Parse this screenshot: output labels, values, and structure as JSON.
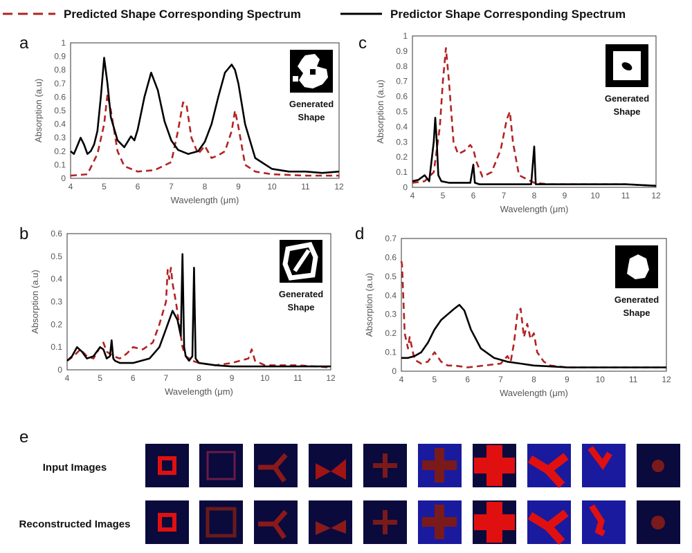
{
  "legend": {
    "predicted": "Predicted Shape Corresponding Spectrum",
    "predictor": "Predictor Shape Corresponding Spectrum",
    "predicted_color": "#b22222",
    "predictor_color": "#000000"
  },
  "chart_data": [
    {
      "panel": "a",
      "type": "line",
      "xlabel": "Wavelength (μm)",
      "ylabel": "Absorption (a.u)",
      "xlim": [
        4,
        12
      ],
      "ylim": [
        0,
        1
      ],
      "xticks": [
        "4",
        "5",
        "6",
        "7",
        "8",
        "9",
        "10",
        "11",
        "12"
      ],
      "yticks": [
        "0",
        "0.1",
        "0.2",
        "0.3",
        "0.4",
        "0.5",
        "0.6",
        "0.7",
        "0.8",
        "0.9",
        "1"
      ],
      "inset_label": [
        "Generated",
        "Shape"
      ],
      "series": [
        {
          "name": "Predicted Shape Corresponding Spectrum",
          "style": "dashed",
          "x": [
            4.0,
            4.5,
            4.8,
            5.0,
            5.1,
            5.2,
            5.4,
            5.6,
            6.0,
            6.5,
            7.0,
            7.2,
            7.35,
            7.45,
            7.6,
            7.8,
            8.0,
            8.2,
            8.4,
            8.6,
            8.8,
            8.9,
            9.0,
            9.2,
            9.5,
            10,
            11,
            12
          ],
          "y": [
            0.02,
            0.03,
            0.18,
            0.4,
            0.62,
            0.5,
            0.2,
            0.09,
            0.05,
            0.06,
            0.12,
            0.35,
            0.56,
            0.55,
            0.3,
            0.18,
            0.24,
            0.15,
            0.17,
            0.2,
            0.35,
            0.5,
            0.38,
            0.1,
            0.05,
            0.03,
            0.02,
            0.02
          ]
        },
        {
          "name": "Predictor Shape Corresponding Spectrum",
          "style": "solid",
          "x": [
            4.0,
            4.1,
            4.2,
            4.3,
            4.4,
            4.5,
            4.6,
            4.7,
            4.8,
            4.9,
            5.0,
            5.1,
            5.2,
            5.4,
            5.6,
            5.8,
            5.9,
            6.0,
            6.2,
            6.4,
            6.6,
            6.8,
            7.0,
            7.2,
            7.5,
            7.8,
            8.0,
            8.2,
            8.4,
            8.6,
            8.8,
            8.9,
            9.0,
            9.2,
            9.5,
            10,
            10.5,
            11,
            11.5,
            12
          ],
          "y": [
            0.2,
            0.18,
            0.24,
            0.3,
            0.25,
            0.18,
            0.2,
            0.25,
            0.35,
            0.6,
            0.89,
            0.7,
            0.45,
            0.28,
            0.23,
            0.31,
            0.28,
            0.36,
            0.6,
            0.78,
            0.65,
            0.42,
            0.28,
            0.21,
            0.18,
            0.2,
            0.27,
            0.4,
            0.6,
            0.78,
            0.84,
            0.8,
            0.7,
            0.4,
            0.15,
            0.07,
            0.05,
            0.05,
            0.04,
            0.05
          ]
        }
      ]
    },
    {
      "panel": "b",
      "type": "line",
      "xlabel": "Wavelength (μm)",
      "ylabel": "Absorption (a.u)",
      "xlim": [
        4,
        12
      ],
      "ylim": [
        0,
        0.6
      ],
      "xticks": [
        "4",
        "5",
        "6",
        "7",
        "8",
        "9",
        "10",
        "11",
        "12"
      ],
      "yticks": [
        "0",
        "0.1",
        "0.2",
        "0.3",
        "0.4",
        "0.5",
        "0.6"
      ],
      "inset_label": [
        "Generated",
        "Shape"
      ],
      "series": [
        {
          "name": "Predicted Shape Corresponding Spectrum",
          "style": "dashed",
          "x": [
            4.0,
            4.2,
            4.4,
            4.6,
            4.8,
            5.0,
            5.1,
            5.2,
            5.4,
            5.6,
            5.8,
            6.0,
            6.3,
            6.6,
            6.8,
            7.0,
            7.05,
            7.1,
            7.15,
            7.2,
            7.3,
            7.4,
            7.5,
            7.6,
            7.8,
            8.0,
            8.5,
            9.0,
            9.5,
            9.6,
            9.7,
            10,
            11,
            12
          ],
          "y": [
            0.04,
            0.06,
            0.09,
            0.06,
            0.05,
            0.1,
            0.12,
            0.08,
            0.06,
            0.05,
            0.07,
            0.1,
            0.09,
            0.12,
            0.2,
            0.3,
            0.44,
            0.4,
            0.45,
            0.38,
            0.3,
            0.2,
            0.1,
            0.06,
            0.04,
            0.03,
            0.02,
            0.03,
            0.05,
            0.09,
            0.04,
            0.02,
            0.02,
            0.01
          ]
        },
        {
          "name": "Predictor Shape Corresponding Spectrum",
          "style": "solid",
          "x": [
            4.0,
            4.15,
            4.3,
            4.45,
            4.6,
            4.8,
            5.0,
            5.1,
            5.2,
            5.3,
            5.35,
            5.4,
            5.45,
            5.6,
            6.0,
            6.5,
            6.8,
            7.0,
            7.2,
            7.35,
            7.45,
            7.5,
            7.55,
            7.6,
            7.7,
            7.8,
            7.85,
            7.9,
            8.0,
            8.5,
            9,
            10,
            11,
            12
          ],
          "y": [
            0.04,
            0.06,
            0.1,
            0.08,
            0.05,
            0.06,
            0.1,
            0.09,
            0.05,
            0.06,
            0.13,
            0.05,
            0.04,
            0.03,
            0.03,
            0.05,
            0.1,
            0.18,
            0.26,
            0.22,
            0.15,
            0.51,
            0.1,
            0.06,
            0.04,
            0.06,
            0.45,
            0.05,
            0.03,
            0.02,
            0.015,
            0.015,
            0.015,
            0.015
          ]
        }
      ]
    },
    {
      "panel": "c",
      "type": "line",
      "xlabel": "Wavelength (μm)",
      "ylabel": "Absorption (a.u)",
      "xlim": [
        4,
        12
      ],
      "ylim": [
        0,
        1
      ],
      "xticks": [
        "4",
        "5",
        "6",
        "7",
        "8",
        "9",
        "10",
        "11",
        "12"
      ],
      "yticks": [
        "0",
        "0.1",
        "0.2",
        "0.3",
        "0.4",
        "0.5",
        "0.6",
        "0.7",
        "0.8",
        "0.9",
        "1"
      ],
      "inset_label": [
        "Generated",
        "Shape"
      ],
      "series": [
        {
          "name": "Predicted Shape Corresponding Spectrum",
          "style": "dashed",
          "x": [
            4.0,
            4.4,
            4.7,
            4.9,
            5.0,
            5.1,
            5.2,
            5.35,
            5.5,
            5.7,
            5.9,
            6.0,
            6.1,
            6.3,
            6.6,
            6.9,
            7.1,
            7.2,
            7.3,
            7.5,
            7.8,
            8.0,
            8.5,
            9,
            10,
            11,
            12
          ],
          "y": [
            0.03,
            0.04,
            0.1,
            0.4,
            0.7,
            0.92,
            0.7,
            0.3,
            0.22,
            0.24,
            0.28,
            0.25,
            0.17,
            0.07,
            0.1,
            0.25,
            0.45,
            0.5,
            0.3,
            0.08,
            0.05,
            0.03,
            0.02,
            0.02,
            0.02,
            0.02,
            0.01
          ]
        },
        {
          "name": "Predictor Shape Corresponding Spectrum",
          "style": "solid",
          "x": [
            4.0,
            4.2,
            4.4,
            4.55,
            4.7,
            4.75,
            4.8,
            4.85,
            4.95,
            5.2,
            5.5,
            5.9,
            6.0,
            6.05,
            6.2,
            7.0,
            7.9,
            8.0,
            8.05,
            8.2,
            9,
            10,
            11,
            12
          ],
          "y": [
            0.04,
            0.05,
            0.08,
            0.04,
            0.3,
            0.46,
            0.3,
            0.08,
            0.04,
            0.03,
            0.03,
            0.03,
            0.15,
            0.03,
            0.02,
            0.02,
            0.02,
            0.27,
            0.02,
            0.02,
            0.02,
            0.02,
            0.02,
            0.01
          ]
        }
      ]
    },
    {
      "panel": "d",
      "type": "line",
      "xlabel": "Wavelength (μm)",
      "ylabel": "Absorption (a.u)",
      "xlim": [
        4,
        12
      ],
      "ylim": [
        0,
        0.7
      ],
      "xticks": [
        "4",
        "5",
        "6",
        "7",
        "8",
        "9",
        "10",
        "11",
        "12"
      ],
      "yticks": [
        "0",
        "0.1",
        "0.2",
        "0.3",
        "0.4",
        "0.5",
        "0.6",
        "0.7"
      ],
      "inset_label": [
        "Generated",
        "Shape"
      ],
      "series": [
        {
          "name": "Predicted Shape Corresponding Spectrum",
          "style": "dashed",
          "x": [
            4.0,
            4.02,
            4.1,
            4.2,
            4.25,
            4.4,
            4.6,
            4.8,
            5.0,
            5.2,
            5.4,
            5.6,
            6.0,
            6.5,
            7.0,
            7.2,
            7.3,
            7.4,
            7.5,
            7.6,
            7.7,
            7.8,
            7.9,
            8.0,
            8.1,
            8.3,
            8.5,
            9,
            10,
            11,
            12
          ],
          "y": [
            0.58,
            0.56,
            0.2,
            0.12,
            0.18,
            0.06,
            0.04,
            0.05,
            0.1,
            0.05,
            0.03,
            0.03,
            0.02,
            0.03,
            0.04,
            0.08,
            0.05,
            0.15,
            0.3,
            0.33,
            0.18,
            0.25,
            0.17,
            0.2,
            0.1,
            0.05,
            0.03,
            0.02,
            0.02,
            0.02,
            0.02
          ]
        },
        {
          "name": "Predictor Shape Corresponding Spectrum",
          "style": "solid",
          "x": [
            4.0,
            4.2,
            4.4,
            4.6,
            4.8,
            5.0,
            5.2,
            5.4,
            5.6,
            5.75,
            5.9,
            6.1,
            6.4,
            6.8,
            7.2,
            7.6,
            8,
            8.5,
            9,
            10,
            11,
            12
          ],
          "y": [
            0.07,
            0.07,
            0.08,
            0.1,
            0.15,
            0.22,
            0.27,
            0.3,
            0.33,
            0.35,
            0.32,
            0.22,
            0.12,
            0.07,
            0.05,
            0.04,
            0.03,
            0.025,
            0.02,
            0.02,
            0.02,
            0.02
          ]
        }
      ]
    }
  ],
  "panel_e": {
    "letter": "e",
    "row_labels": [
      "Input Images",
      "Reconstructed Images"
    ],
    "shapes": [
      "small-square",
      "large-square",
      "y-shape",
      "bowtie",
      "thin-cross",
      "cross",
      "big-cross",
      "thick-y",
      "arrow",
      "dot"
    ],
    "colors": {
      "dark_bg": "#0a0a3c",
      "blue_bg": "#1a1a9e",
      "red": "#e01010",
      "dark_red": "#7a1a1a",
      "mid_red": "#a01414"
    }
  }
}
